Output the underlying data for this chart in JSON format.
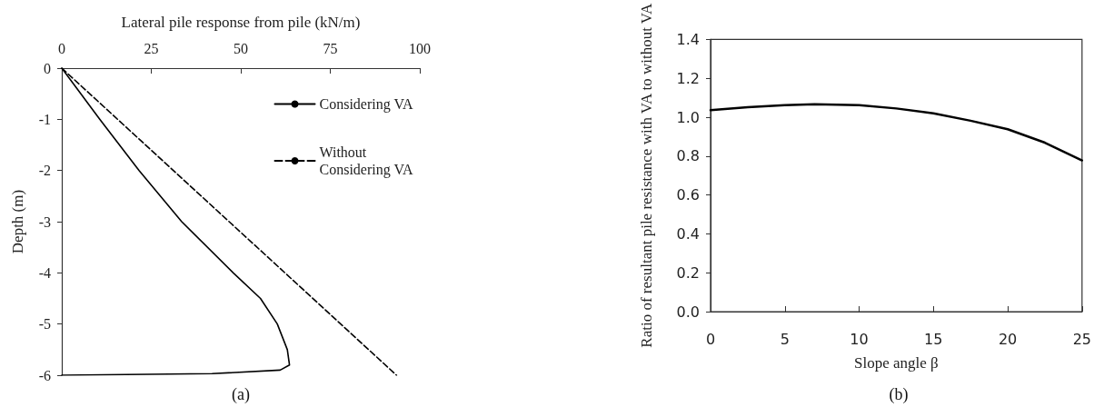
{
  "chart_data": [
    {
      "type": "line",
      "xlabel": "Lateral pile response from pile (kN/m)",
      "ylabel": "Depth (m)",
      "annotations": [
        "(a)"
      ],
      "xlim": [
        0,
        100
      ],
      "xticks": [
        0,
        25,
        50,
        75,
        100
      ],
      "ylim": [
        -6,
        0
      ],
      "yticks": [
        -6,
        -5,
        -4,
        -3,
        -2,
        -1,
        0
      ],
      "grid": false,
      "legend": "top right",
      "marker": "none",
      "series": [
        {
          "name": "Considering VA",
          "color": "#000000",
          "line_style": "solid",
          "x": [
            0,
            10.6,
            21.6,
            33.5,
            47.9,
            55.5,
            60.2,
            63,
            63.6,
            61,
            42,
            0
          ],
          "values": [
            0,
            -1,
            -2,
            -3,
            -4,
            -4.5,
            -5,
            -5.5,
            -5.8,
            -5.9,
            -5.97,
            -6
          ]
        },
        {
          "name": "Without Considering VA",
          "color": "#000000",
          "line_style": "dashed",
          "x": [
            0,
            93.5
          ],
          "values": [
            0,
            -6
          ]
        }
      ]
    },
    {
      "type": "line",
      "xlabel": "Slope angle β",
      "ylabel": "Ratio of resultant pile resistance with VA to without VA",
      "annotations": [
        "(b)"
      ],
      "xlim": [
        0,
        25
      ],
      "xticks": [
        0,
        5,
        10,
        15,
        20,
        25
      ],
      "ylim": [
        0,
        1.4
      ],
      "yticks": [
        {
          "value": 0,
          "label": "0.0"
        },
        {
          "value": 0.2,
          "label": "0.2"
        },
        {
          "value": 0.4,
          "label": "0.4"
        },
        {
          "value": 0.6,
          "label": "0.6"
        },
        {
          "value": 0.8,
          "label": "0.8"
        },
        {
          "value": 1,
          "label": "1.0"
        },
        {
          "value": 1.2,
          "label": "1.2"
        },
        {
          "value": 1.4,
          "label": "1.4"
        }
      ],
      "grid": false,
      "legend": false,
      "marker": "none",
      "series": [
        {
          "color": "#000000",
          "line_style": "solid",
          "x": [
            0,
            2.5,
            5,
            7,
            10,
            12.5,
            15,
            17.5,
            20,
            22.5,
            25
          ],
          "values": [
            1.036,
            1.051,
            1.062,
            1.067,
            1.062,
            1.045,
            1.02,
            0.982,
            0.938,
            0.869,
            0.778
          ]
        }
      ]
    }
  ]
}
